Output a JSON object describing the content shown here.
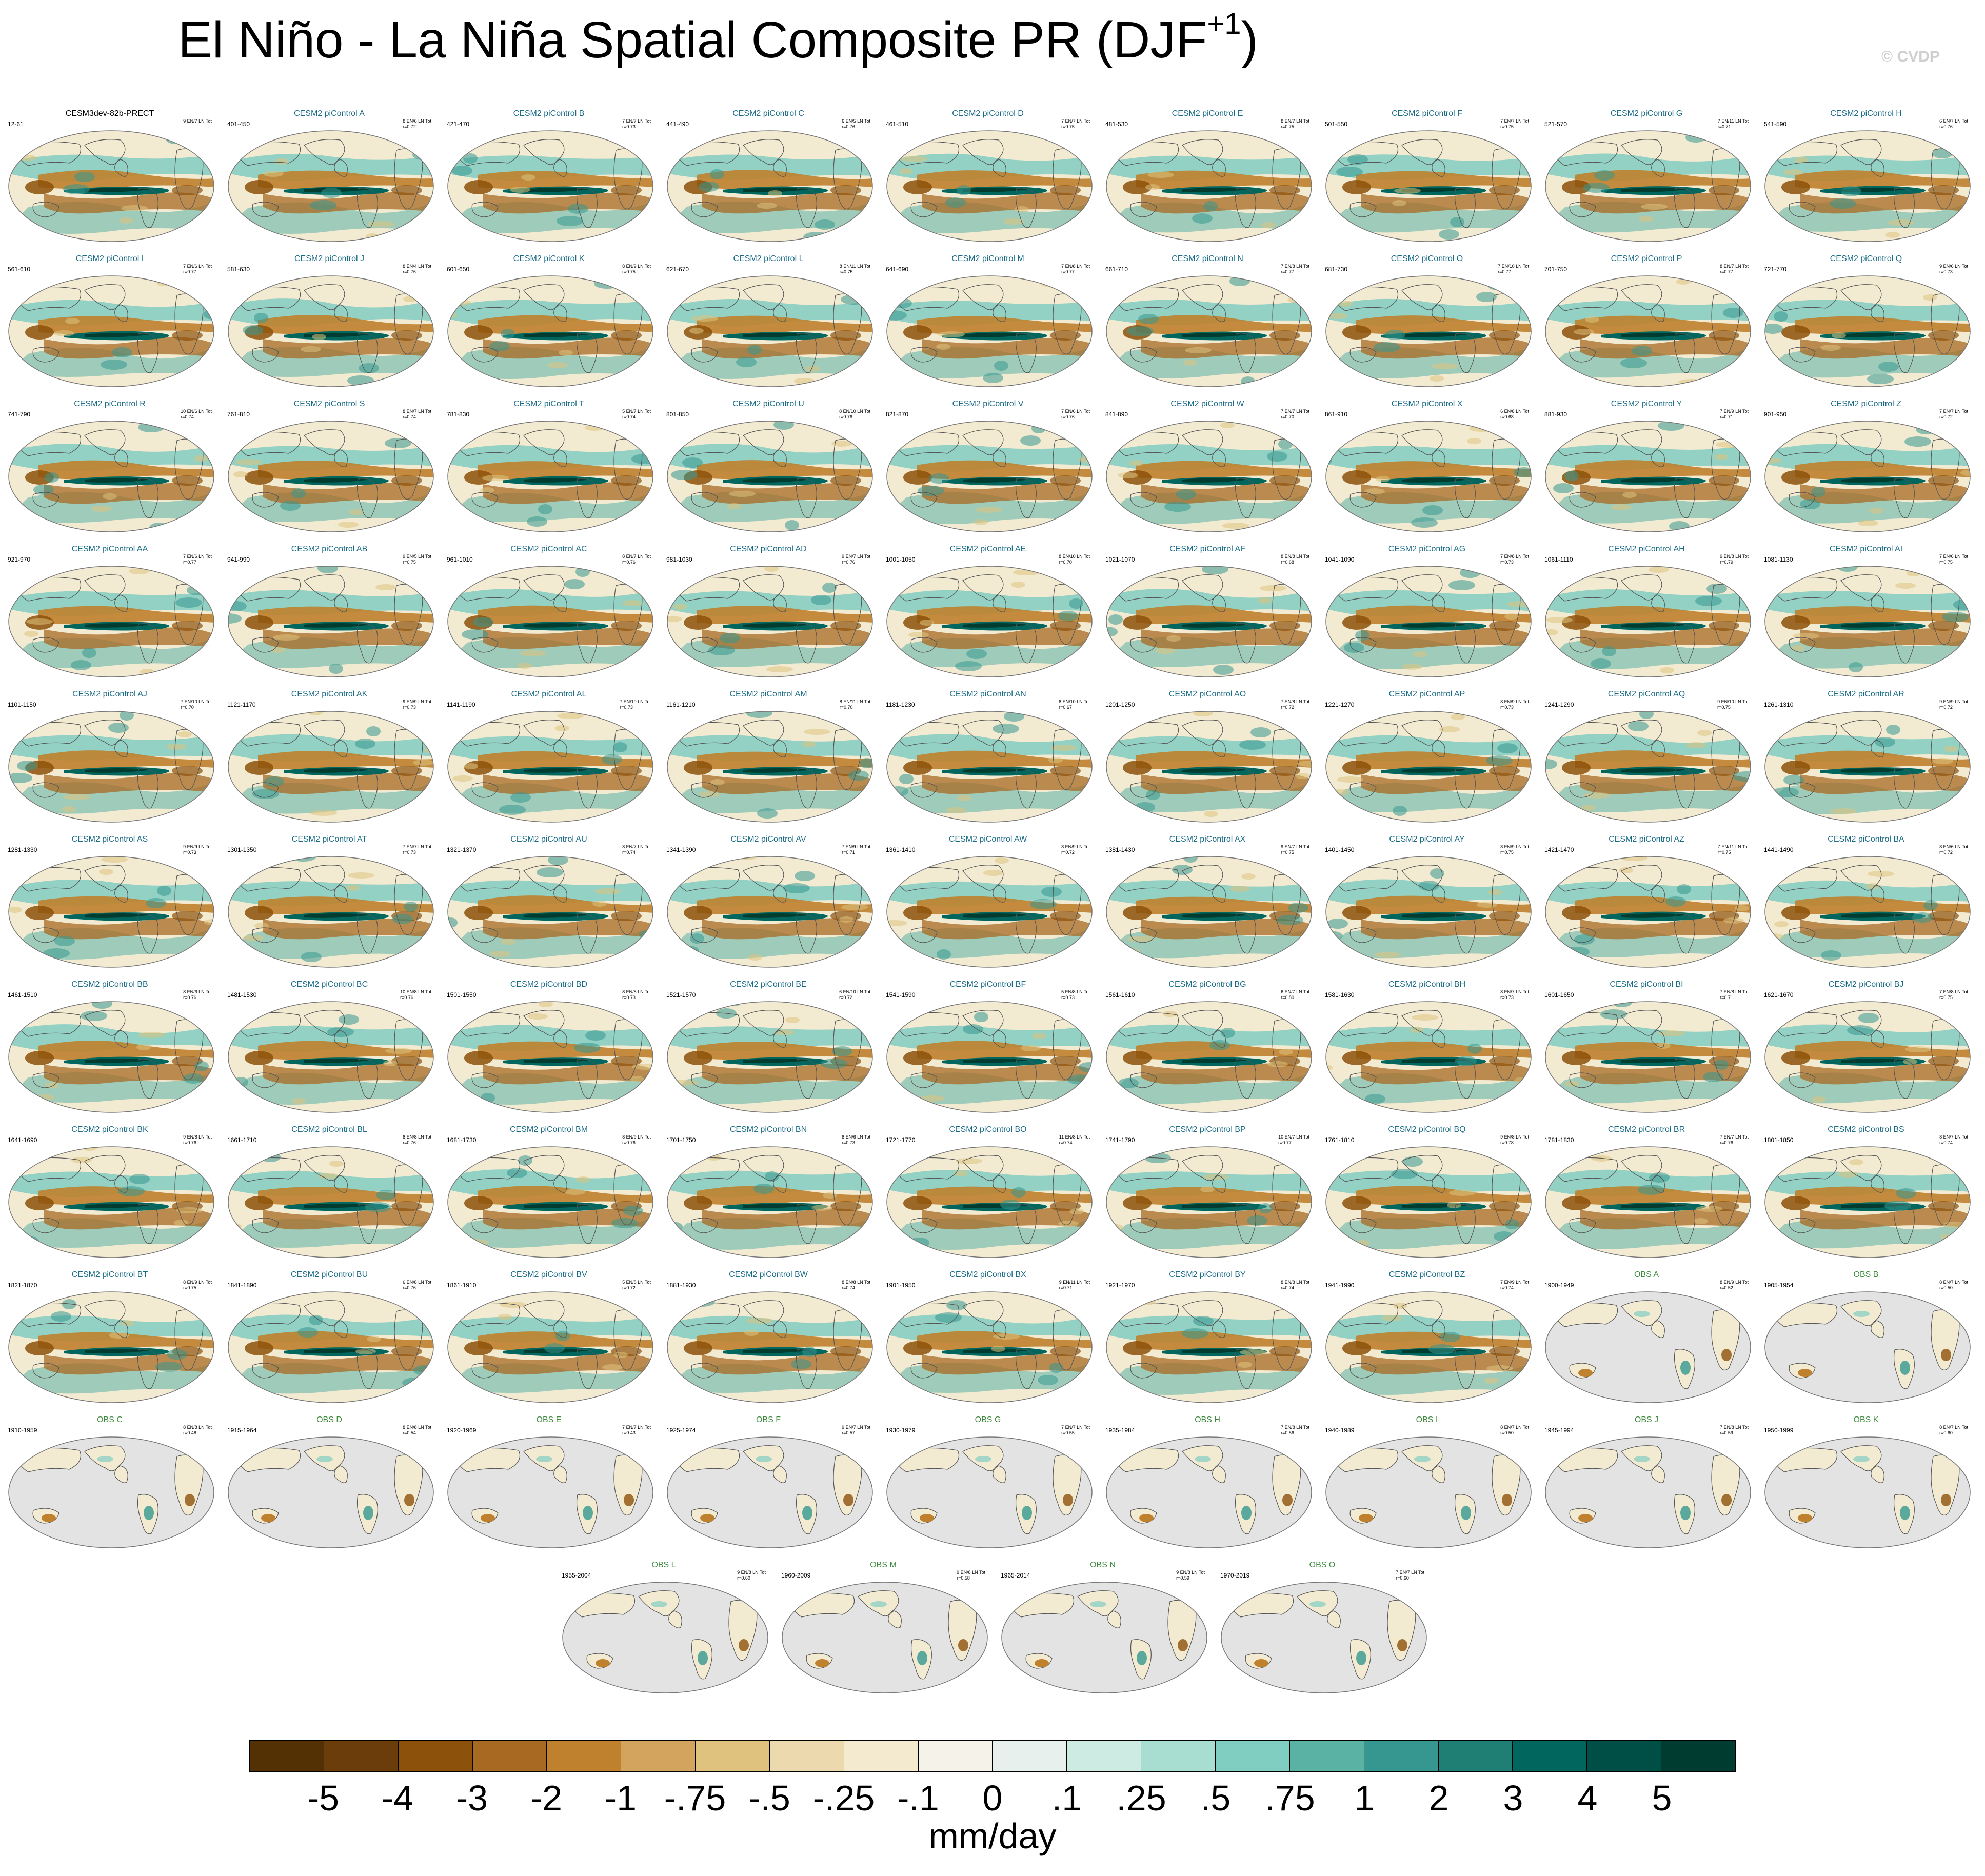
{
  "title": {
    "main": "El Niño - La Niña Spatial Composite PR (DJF",
    "sup": "+1",
    "close": ")"
  },
  "credit": "© CVDP",
  "colors": {
    "model_title": "#1a6b86",
    "obs_title": "#3f8a3f",
    "ref_title": "#000000",
    "ocean_missing": "#e3e3e3",
    "coast": "#555555"
  },
  "panels": [
    {
      "title": "CESM3dev-82b-PRECT",
      "period": "12-61",
      "stats": "9 EN/7 LN Tot",
      "r": "",
      "kind": "ref"
    },
    {
      "title": "CESM2 piControl A",
      "period": "401-450",
      "stats": "8 EN/6 LN Tot",
      "r": "r=0.72",
      "kind": "model"
    },
    {
      "title": "CESM2 piControl B",
      "period": "421-470",
      "stats": "7 EN/7 LN Tot",
      "r": "r=0.73",
      "kind": "model"
    },
    {
      "title": "CESM2 piControl C",
      "period": "441-490",
      "stats": "6 EN/5 LN Tot",
      "r": "r=0.76",
      "kind": "model"
    },
    {
      "title": "CESM2 piControl D",
      "period": "461-510",
      "stats": "7 EN/7 LN Tot",
      "r": "r=0.75",
      "kind": "model"
    },
    {
      "title": "CESM2 piControl E",
      "period": "481-530",
      "stats": "8 EN/7 LN Tot",
      "r": "r=0.75",
      "kind": "model"
    },
    {
      "title": "CESM2 piControl F",
      "period": "501-550",
      "stats": "7 EN/7 LN Tot",
      "r": "r=0.75",
      "kind": "model"
    },
    {
      "title": "CESM2 piControl G",
      "period": "521-570",
      "stats": "7 EN/11 LN Tot",
      "r": "r=0.71",
      "kind": "model"
    },
    {
      "title": "CESM2 piControl H",
      "period": "541-590",
      "stats": "6 EN/7 LN Tot",
      "r": "r=0.76",
      "kind": "model"
    },
    {
      "title": "CESM2 piControl I",
      "period": "561-610",
      "stats": "7 EN/6 LN Tot",
      "r": "r=0.77",
      "kind": "model"
    },
    {
      "title": "CESM2 piControl J",
      "period": "581-630",
      "stats": "8 EN/4 LN Tot",
      "r": "r=0.76",
      "kind": "model"
    },
    {
      "title": "CESM2 piControl K",
      "period": "601-650",
      "stats": "8 EN/9 LN Tot",
      "r": "r=0.75",
      "kind": "model"
    },
    {
      "title": "CESM2 piControl L",
      "period": "621-670",
      "stats": "8 EN/11 LN Tot",
      "r": "r=0.75",
      "kind": "model"
    },
    {
      "title": "CESM2 piControl M",
      "period": "641-690",
      "stats": "7 EN/8 LN Tot",
      "r": "r=0.77",
      "kind": "model"
    },
    {
      "title": "CESM2 piControl N",
      "period": "661-710",
      "stats": "7 EN/8 LN Tot",
      "r": "r=0.77",
      "kind": "model"
    },
    {
      "title": "CESM2 piControl O",
      "period": "681-730",
      "stats": "7 EN/10 LN Tot",
      "r": "r=0.77",
      "kind": "model"
    },
    {
      "title": "CESM2 piControl P",
      "period": "701-750",
      "stats": "8 EN/7 LN Tot",
      "r": "r=0.77",
      "kind": "model"
    },
    {
      "title": "CESM2 piControl Q",
      "period": "721-770",
      "stats": "9 EN/6 LN Tot",
      "r": "r=0.73",
      "kind": "model"
    },
    {
      "title": "CESM2 piControl R",
      "period": "741-790",
      "stats": "10 EN/6 LN Tot",
      "r": "r=0.74",
      "kind": "model"
    },
    {
      "title": "CESM2 piControl S",
      "period": "761-810",
      "stats": "8 EN/7 LN Tot",
      "r": "r=0.74",
      "kind": "model"
    },
    {
      "title": "CESM2 piControl T",
      "period": "781-830",
      "stats": "5 EN/7 LN Tot",
      "r": "r=0.74",
      "kind": "model"
    },
    {
      "title": "CESM2 piControl U",
      "period": "801-850",
      "stats": "8 EN/10 LN Tot",
      "r": "r=0.76",
      "kind": "model"
    },
    {
      "title": "CESM2 piControl V",
      "period": "821-870",
      "stats": "7 EN/6 LN Tot",
      "r": "r=0.76",
      "kind": "model"
    },
    {
      "title": "CESM2 piControl W",
      "period": "841-890",
      "stats": "7 EN/7 LN Tot",
      "r": "r=0.70",
      "kind": "model"
    },
    {
      "title": "CESM2 piControl X",
      "period": "861-910",
      "stats": "6 EN/8 LN Tot",
      "r": "r=0.68",
      "kind": "model"
    },
    {
      "title": "CESM2 piControl Y",
      "period": "881-930",
      "stats": "7 EN/9 LN Tot",
      "r": "r=0.71",
      "kind": "model"
    },
    {
      "title": "CESM2 piControl Z",
      "period": "901-950",
      "stats": "7 EN/7 LN Tot",
      "r": "r=0.72",
      "kind": "model"
    },
    {
      "title": "CESM2 piControl AA",
      "period": "921-970",
      "stats": "7 EN/6 LN Tot",
      "r": "r=0.77",
      "kind": "model"
    },
    {
      "title": "CESM2 piControl AB",
      "period": "941-990",
      "stats": "9 EN/5 LN Tot",
      "r": "r=0.75",
      "kind": "model"
    },
    {
      "title": "CESM2 piControl AC",
      "period": "961-1010",
      "stats": "8 EN/7 LN Tot",
      "r": "r=0.76",
      "kind": "model"
    },
    {
      "title": "CESM2 piControl AD",
      "period": "981-1030",
      "stats": "9 EN/7 LN Tot",
      "r": "r=0.76",
      "kind": "model"
    },
    {
      "title": "CESM2 piControl AE",
      "period": "1001-1050",
      "stats": "8 EN/10 LN Tot",
      "r": "r=0.70",
      "kind": "model"
    },
    {
      "title": "CESM2 piControl AF",
      "period": "1021-1070",
      "stats": "8 EN/8 LN Tot",
      "r": "r=0.68",
      "kind": "model"
    },
    {
      "title": "CESM2 piControl AG",
      "period": "1041-1090",
      "stats": "7 EN/8 LN Tot",
      "r": "r=0.73",
      "kind": "model"
    },
    {
      "title": "CESM2 piControl AH",
      "period": "1061-1110",
      "stats": "9 EN/8 LN Tot",
      "r": "r=0.79",
      "kind": "model"
    },
    {
      "title": "CESM2 piControl AI",
      "period": "1081-1130",
      "stats": "7 EN/6 LN Tot",
      "r": "r=0.75",
      "kind": "model"
    },
    {
      "title": "CESM2 piControl AJ",
      "period": "1101-1150",
      "stats": "7 EN/10 LN Tot",
      "r": "r=0.70",
      "kind": "model"
    },
    {
      "title": "CESM2 piControl AK",
      "period": "1121-1170",
      "stats": "9 EN/9 LN Tot",
      "r": "r=0.73",
      "kind": "model"
    },
    {
      "title": "CESM2 piControl AL",
      "period": "1141-1190",
      "stats": "7 EN/10 LN Tot",
      "r": "r=0.73",
      "kind": "model"
    },
    {
      "title": "CESM2 piControl AM",
      "period": "1161-1210",
      "stats": "8 EN/11 LN Tot",
      "r": "r=0.70",
      "kind": "model"
    },
    {
      "title": "CESM2 piControl AN",
      "period": "1181-1230",
      "stats": "8 EN/10 LN Tot",
      "r": "r=0.67",
      "kind": "model"
    },
    {
      "title": "CESM2 piControl AO",
      "period": "1201-1250",
      "stats": "7 EN/8 LN Tot",
      "r": "r=0.72",
      "kind": "model"
    },
    {
      "title": "CESM2 piControl AP",
      "period": "1221-1270",
      "stats": "8 EN/9 LN Tot",
      "r": "r=0.73",
      "kind": "model"
    },
    {
      "title": "CESM2 piControl AQ",
      "period": "1241-1290",
      "stats": "9 EN/10 LN Tot",
      "r": "r=0.75",
      "kind": "model"
    },
    {
      "title": "CESM2 piControl AR",
      "period": "1261-1310",
      "stats": "9 EN/9 LN Tot",
      "r": "r=0.72",
      "kind": "model"
    },
    {
      "title": "CESM2 piControl AS",
      "period": "1281-1330",
      "stats": "9 EN/9 LN Tot",
      "r": "r=0.73",
      "kind": "model"
    },
    {
      "title": "CESM2 piControl AT",
      "period": "1301-1350",
      "stats": "7 EN/7 LN Tot",
      "r": "r=0.73",
      "kind": "model"
    },
    {
      "title": "CESM2 piControl AU",
      "period": "1321-1370",
      "stats": "8 EN/7 LN Tot",
      "r": "r=0.74",
      "kind": "model"
    },
    {
      "title": "CESM2 piControl AV",
      "period": "1341-1390",
      "stats": "7 EN/9 LN Tot",
      "r": "r=0.71",
      "kind": "model"
    },
    {
      "title": "CESM2 piControl AW",
      "period": "1361-1410",
      "stats": "8 EN/9 LN Tot",
      "r": "r=0.72",
      "kind": "model"
    },
    {
      "title": "CESM2 piControl AX",
      "period": "1381-1430",
      "stats": "9 EN/7 LN Tot",
      "r": "r=0.75",
      "kind": "model"
    },
    {
      "title": "CESM2 piControl AY",
      "period": "1401-1450",
      "stats": "8 EN/9 LN Tot",
      "r": "r=0.75",
      "kind": "model"
    },
    {
      "title": "CESM2 piControl AZ",
      "period": "1421-1470",
      "stats": "7 EN/11 LN Tot",
      "r": "r=0.75",
      "kind": "model"
    },
    {
      "title": "CESM2 piControl BA",
      "period": "1441-1490",
      "stats": "8 EN/6 LN Tot",
      "r": "r=0.72",
      "kind": "model"
    },
    {
      "title": "CESM2 piControl BB",
      "period": "1461-1510",
      "stats": "8 EN/6 LN Tot",
      "r": "r=0.76",
      "kind": "model"
    },
    {
      "title": "CESM2 piControl BC",
      "period": "1481-1530",
      "stats": "10 EN/8 LN Tot",
      "r": "r=0.76",
      "kind": "model"
    },
    {
      "title": "CESM2 piControl BD",
      "period": "1501-1550",
      "stats": "8 EN/8 LN Tot",
      "r": "r=0.73",
      "kind": "model"
    },
    {
      "title": "CESM2 piControl BE",
      "period": "1521-1570",
      "stats": "6 EN/10 LN Tot",
      "r": "r=0.72",
      "kind": "model"
    },
    {
      "title": "CESM2 piControl BF",
      "period": "1541-1590",
      "stats": "5 EN/8 LN Tot",
      "r": "r=0.73",
      "kind": "model"
    },
    {
      "title": "CESM2 piControl BG",
      "period": "1561-1610",
      "stats": "6 EN/7 LN Tot",
      "r": "r=0.80",
      "kind": "model"
    },
    {
      "title": "CESM2 piControl BH",
      "period": "1581-1630",
      "stats": "8 EN/7 LN Tot",
      "r": "r=0.73",
      "kind": "model"
    },
    {
      "title": "CESM2 piControl BI",
      "period": "1601-1650",
      "stats": "7 EN/8 LN Tot",
      "r": "r=0.71",
      "kind": "model"
    },
    {
      "title": "CESM2 piControl BJ",
      "period": "1621-1670",
      "stats": "7 EN/8 LN Tot",
      "r": "r=0.75",
      "kind": "model"
    },
    {
      "title": "CESM2 piControl BK",
      "period": "1641-1690",
      "stats": "9 EN/8 LN Tot",
      "r": "r=0.76",
      "kind": "model"
    },
    {
      "title": "CESM2 piControl BL",
      "period": "1661-1710",
      "stats": "8 EN/8 LN Tot",
      "r": "r=0.76",
      "kind": "model"
    },
    {
      "title": "CESM2 piControl BM",
      "period": "1681-1730",
      "stats": "8 EN/9 LN Tot",
      "r": "r=0.76",
      "kind": "model"
    },
    {
      "title": "CESM2 piControl BN",
      "period": "1701-1750",
      "stats": "8 EN/6 LN Tot",
      "r": "r=0.73",
      "kind": "model"
    },
    {
      "title": "CESM2 piControl BO",
      "period": "1721-1770",
      "stats": "11 EN/8 LN Tot",
      "r": "r=0.74",
      "kind": "model"
    },
    {
      "title": "CESM2 piControl BP",
      "period": "1741-1790",
      "stats": "10 EN/7 LN Tot",
      "r": "r=0.77",
      "kind": "model"
    },
    {
      "title": "CESM2 piControl BQ",
      "period": "1761-1810",
      "stats": "9 EN/8 LN Tot",
      "r": "r=0.78",
      "kind": "model"
    },
    {
      "title": "CESM2 piControl BR",
      "period": "1781-1830",
      "stats": "7 EN/7 LN Tot",
      "r": "r=0.76",
      "kind": "model"
    },
    {
      "title": "CESM2 piControl BS",
      "period": "1801-1850",
      "stats": "8 EN/7 LN Tot",
      "r": "r=0.74",
      "kind": "model"
    },
    {
      "title": "CESM2 piControl BT",
      "period": "1821-1870",
      "stats": "8 EN/9 LN Tot",
      "r": "r=0.75",
      "kind": "model"
    },
    {
      "title": "CESM2 piControl BU",
      "period": "1841-1890",
      "stats": "6 EN/8 LN Tot",
      "r": "r=0.76",
      "kind": "model"
    },
    {
      "title": "CESM2 piControl BV",
      "period": "1861-1910",
      "stats": "5 EN/8 LN Tot",
      "r": "r=0.72",
      "kind": "model"
    },
    {
      "title": "CESM2 piControl BW",
      "period": "1881-1930",
      "stats": "8 EN/8 LN Tot",
      "r": "r=0.74",
      "kind": "model"
    },
    {
      "title": "CESM2 piControl BX",
      "period": "1901-1950",
      "stats": "9 EN/11 LN Tot",
      "r": "r=0.71",
      "kind": "model"
    },
    {
      "title": "CESM2 piControl BY",
      "period": "1921-1970",
      "stats": "8 EN/8 LN Tot",
      "r": "r=0.74",
      "kind": "model"
    },
    {
      "title": "CESM2 piControl BZ",
      "period": "1941-1990",
      "stats": "7 EN/9 LN Tot",
      "r": "r=0.74",
      "kind": "model"
    },
    {
      "title": "OBS A",
      "period": "1900-1949",
      "stats": "8 EN/9 LN Tot",
      "r": "r=0.52",
      "kind": "obs"
    },
    {
      "title": "OBS B",
      "period": "1905-1954",
      "stats": "8 EN/7 LN Tot",
      "r": "r=0.50",
      "kind": "obs"
    },
    {
      "title": "OBS C",
      "period": "1910-1959",
      "stats": "8 EN/8 LN Tot",
      "r": "r=0.48",
      "kind": "obs"
    },
    {
      "title": "OBS D",
      "period": "1915-1964",
      "stats": "8 EN/8 LN Tot",
      "r": "r=0.54",
      "kind": "obs"
    },
    {
      "title": "OBS E",
      "period": "1920-1969",
      "stats": "7 EN/7 LN Tot",
      "r": "r=0.43",
      "kind": "obs"
    },
    {
      "title": "OBS F",
      "period": "1925-1974",
      "stats": "9 EN/7 LN Tot",
      "r": "r=0.57",
      "kind": "obs"
    },
    {
      "title": "OBS G",
      "period": "1930-1979",
      "stats": "7 EN/7 LN Tot",
      "r": "r=0.55",
      "kind": "obs"
    },
    {
      "title": "OBS H",
      "period": "1935-1984",
      "stats": "7 EN/8 LN Tot",
      "r": "r=0.56",
      "kind": "obs"
    },
    {
      "title": "OBS I",
      "period": "1940-1989",
      "stats": "8 EN/7 LN Tot",
      "r": "r=0.50",
      "kind": "obs"
    },
    {
      "title": "OBS J",
      "period": "1945-1994",
      "stats": "7 EN/8 LN Tot",
      "r": "r=0.59",
      "kind": "obs"
    },
    {
      "title": "OBS K",
      "period": "1950-1999",
      "stats": "8 EN/7 LN Tot",
      "r": "r=0.60",
      "kind": "obs"
    },
    {
      "title": "OBS L",
      "period": "1955-2004",
      "stats": "9 EN/8 LN Tot",
      "r": "r=0.60",
      "kind": "obs"
    },
    {
      "title": "OBS M",
      "period": "1960-2009",
      "stats": "9 EN/8 LN Tot",
      "r": "r=0.58",
      "kind": "obs"
    },
    {
      "title": "OBS N",
      "period": "1965-2014",
      "stats": "9 EN/8 LN Tot",
      "r": "r=0.59",
      "kind": "obs"
    },
    {
      "title": "OBS O",
      "period": "1970-2019",
      "stats": "7 EN/7 LN Tot",
      "r": "r=0.60",
      "kind": "obs"
    }
  ],
  "colorbar": {
    "colors": [
      "#543005",
      "#6b3d0a",
      "#8c510a",
      "#a86922",
      "#bf812d",
      "#d2a45e",
      "#dfc27d",
      "#ecd9ad",
      "#f4ead0",
      "#f5f2ea",
      "#e7f0ed",
      "#cdeae3",
      "#a8ddd2",
      "#80cdc1",
      "#5ab2a5",
      "#35978f",
      "#1f7f75",
      "#01665e",
      "#004f46",
      "#003c30"
    ],
    "labels": [
      "-5",
      "-4",
      "-3",
      "-2",
      "-1",
      "-.75",
      "-.5",
      "-.25",
      "-.1",
      "0",
      ".1",
      ".25",
      ".5",
      ".75",
      "1",
      "2",
      "3",
      "4",
      "5"
    ],
    "units": "mm/day"
  }
}
